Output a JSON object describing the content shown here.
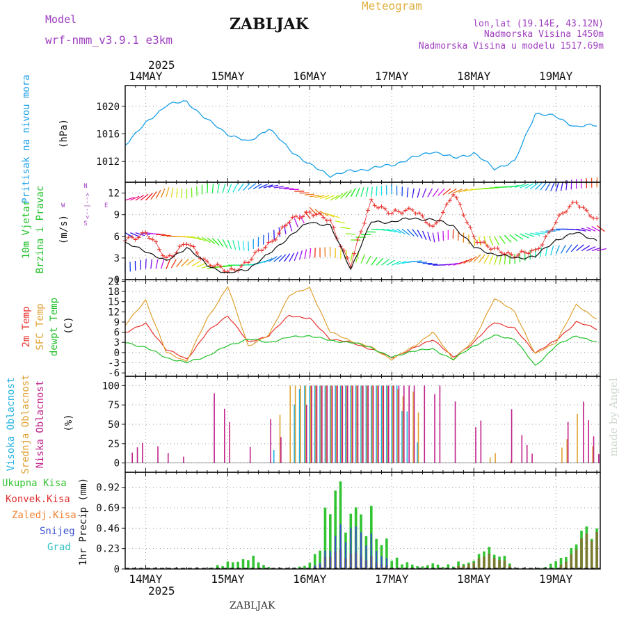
{
  "header": {
    "model_label": "Model",
    "model_name": "wrf-nmm_v3.9.1 e3km",
    "station": "ZABLJAK",
    "chart_kind": "Meteogram",
    "coords": "lon,lat (19.14E, 43.12N)",
    "elevation": "Nadmorska Visina 1450m",
    "model_elevation": "Nadmorska Visina u modelu 1517.69m",
    "watermark": "made by Angel",
    "footer_station": "ZABLJAK"
  },
  "time_axis": {
    "year": "2025",
    "days": [
      "14MAY",
      "15MAY",
      "16MAY",
      "17MAY",
      "18MAY",
      "19MAY"
    ]
  },
  "colors": {
    "pressure": "#1aa0e6",
    "temp2m": "#e8332f",
    "sfctemp": "#e0a030",
    "dewpt": "#22c12a",
    "cloud_high": "#20b0e0",
    "cloud_mid": "#e0a030",
    "cloud_low": "#c0208a",
    "rain_total": "#33c433",
    "rain_conv": "#e03030",
    "rain_frz": "#f08030",
    "snow": "#3a4fd0",
    "hail": "#30c0c0",
    "title_purple": "#a040c0",
    "meteogram_gold": "#e0b040"
  },
  "panels": {
    "pressure": {
      "label": "Pritisak na nivou mora",
      "unit": "(hPa)",
      "ticks": [
        "1012",
        "1016",
        "1020"
      ]
    },
    "wind": {
      "label1": "10m Vjetar",
      "label2": "Brzina i Pravac",
      "unit": "(m/s)",
      "ticks": [
        "0",
        "3",
        "6",
        "9",
        "12"
      ],
      "compass_n": "N",
      "compass_s": "S",
      "compass_w": "W",
      "compass_e": "E",
      "compass_arrow": "<--|-->"
    },
    "temperature": {
      "label1": "2m Temp",
      "label2": "SFC Temp",
      "label3": "dewpt Temp",
      "unit": "(C)",
      "ticks": [
        "-6",
        "-3",
        "0",
        "3",
        "6",
        "9",
        "12",
        "15",
        "18",
        "21"
      ]
    },
    "cloud": {
      "label1": "Visoka Oblacnost",
      "label2": "Srednja Oblacnost",
      "label3": "Niska Oblacnost",
      "unit": "(%)",
      "ticks": [
        "0",
        "25",
        "50",
        "75",
        "100"
      ]
    },
    "precip": {
      "legend": [
        "Ukupna Kisa",
        "Konvek.Kisa",
        "Zaledj.Kisa",
        "Snijeg",
        "Grad"
      ],
      "unit": "1hr Precip (mm)",
      "ticks": [
        "0",
        "0.23",
        "0.46",
        "0.69",
        "0.92"
      ]
    }
  },
  "chart_data": [
    {
      "type": "line",
      "title": "Pritisak na nivou mora",
      "ylabel": "(hPa)",
      "ylim": [
        1009,
        1023
      ],
      "x_unit": "hours since 14MAY 00UTC, 6-hour steps from -6",
      "series": [
        {
          "name": "MSLP",
          "values": [
            1014.5,
            1017.5,
            1020.2,
            1020.7,
            1018.0,
            1016.0,
            1014.8,
            1016.8,
            1013.8,
            1011.5,
            1010.0,
            1010.6,
            1011.0,
            1011.5,
            1012.5,
            1013.5,
            1012.5,
            1013.2,
            1011.0,
            1012.0,
            1019.0,
            1018.5,
            1017.0,
            1017.3,
            1022.0,
            1019.3,
            1019.2
          ]
        }
      ]
    },
    {
      "type": "line",
      "title": "10m Vjetar Brzina i Pravac",
      "ylabel": "(m/s)",
      "ylim": [
        0,
        13.5
      ],
      "series": [
        {
          "name": "Brzina",
          "values": [
            5.0,
            4.0,
            2.5,
            4.5,
            2.0,
            0.8,
            1.5,
            3.5,
            6.0,
            8.0,
            7.5,
            1.5,
            8.0,
            8.0,
            8.5,
            8.3,
            7.5,
            4.5,
            3.5,
            3.0,
            3.2,
            5.5,
            6.5,
            5.5,
            4.5,
            4.0,
            6.0
          ]
        },
        {
          "name": "Udari",
          "values": [
            5.5,
            6.5,
            3.0,
            5.0,
            2.5,
            1.0,
            2.5,
            5.0,
            8.0,
            9.5,
            8.0,
            2.0,
            11.0,
            9.0,
            10.0,
            7.0,
            12.0,
            6.0,
            4.0,
            3.5,
            3.8,
            8.0,
            11.0,
            8.0,
            5.5,
            4.5,
            7.0
          ]
        }
      ]
    },
    {
      "type": "line",
      "title": "Temperatura",
      "ylabel": "(C)",
      "ylim": [
        -7,
        21.5
      ],
      "series": [
        {
          "name": "2m Temp",
          "values": [
            6.0,
            8.5,
            1.0,
            -2.0,
            6.0,
            11.0,
            3.0,
            5.0,
            11.0,
            10.0,
            4.0,
            3.0,
            1.0,
            -1.5,
            1.0,
            4.0,
            -1.5,
            3.0,
            9.0,
            7.0,
            0.0,
            3.5,
            9.0,
            7.0,
            1.5,
            3.0,
            9.0
          ]
        },
        {
          "name": "SFC Temp",
          "values": [
            8.0,
            15.5,
            0.0,
            -2.5,
            10.0,
            19.5,
            2.0,
            5.0,
            17.0,
            19.0,
            6.0,
            3.5,
            1.5,
            -2.0,
            1.5,
            6.0,
            -2.0,
            3.5,
            16.0,
            12.0,
            -0.5,
            3.0,
            14.0,
            10.0,
            0.5,
            3.0,
            14.0
          ]
        },
        {
          "name": "dewpt Temp",
          "values": [
            3.0,
            1.5,
            -1.5,
            -3.0,
            -1.0,
            2.0,
            4.0,
            3.0,
            4.5,
            5.0,
            3.5,
            3.0,
            1.5,
            -1.5,
            0.5,
            1.0,
            -2.0,
            2.0,
            5.0,
            4.0,
            -4.0,
            2.0,
            5.0,
            3.0,
            -3.0,
            1.0,
            6.0
          ]
        }
      ]
    },
    {
      "type": "bar",
      "title": "Oblacnost",
      "ylabel": "(%)",
      "ylim": [
        0,
        100
      ],
      "series": [
        {
          "name": "Visoka",
          "values": [
            0,
            0,
            0,
            0,
            0,
            0,
            0,
            0,
            60,
            100,
            100,
            100,
            100,
            100,
            35,
            0,
            0,
            0,
            0,
            0,
            0,
            0,
            0,
            0,
            0,
            0,
            0
          ]
        },
        {
          "name": "Srednja",
          "values": [
            0,
            0,
            0,
            0,
            0,
            0,
            0,
            0,
            100,
            100,
            100,
            100,
            100,
            100,
            80,
            0,
            0,
            0,
            10,
            0,
            0,
            0,
            65,
            0,
            0,
            0,
            30
          ]
        },
        {
          "name": "Niska",
          "values": [
            5,
            30,
            10,
            8,
            95,
            55,
            15,
            50,
            0,
            100,
            100,
            100,
            100,
            100,
            100,
            90,
            70,
            35,
            95,
            40,
            0,
            0,
            80,
            10,
            60,
            75,
            0
          ]
        }
      ]
    },
    {
      "type": "bar",
      "title": "1hr Precip",
      "ylabel": "1hr Precip (mm)",
      "ylim": [
        0,
        1.1
      ],
      "series": [
        {
          "name": "Ukupna Kisa",
          "values": [
            0,
            0,
            0,
            0,
            0,
            0.1,
            0.17,
            0.03,
            0,
            0.12,
            0.85,
            1.05,
            0.9,
            0.15,
            0.08,
            0.06,
            0.04,
            0.2,
            0.25,
            0.02,
            0,
            0.1,
            0.28,
            0.75,
            0.15,
            0.28,
            0.3
          ]
        },
        {
          "name": "Konvek.Kisa",
          "values": [
            0,
            0,
            0,
            0,
            0,
            0,
            0,
            0,
            0,
            0,
            0.2,
            0.3,
            0.2,
            0,
            0,
            0,
            0,
            0.15,
            0.2,
            0,
            0,
            0,
            0.25,
            0.7,
            0.1,
            0.25,
            0.2
          ]
        },
        {
          "name": "Snijeg",
          "values": [
            0,
            0,
            0,
            0,
            0,
            0,
            0,
            0,
            0,
            0,
            0.3,
            0.8,
            0.55,
            0,
            0,
            0,
            0,
            0,
            0,
            0,
            0,
            0,
            0,
            0,
            0,
            0,
            0
          ]
        },
        {
          "name": "Grad",
          "values": [
            0,
            0,
            0,
            0,
            0,
            0,
            0,
            0,
            0,
            0,
            0,
            0,
            0,
            0,
            0,
            0,
            0,
            0,
            0,
            0,
            0,
            0,
            0,
            0,
            0,
            0,
            0
          ]
        }
      ]
    }
  ]
}
